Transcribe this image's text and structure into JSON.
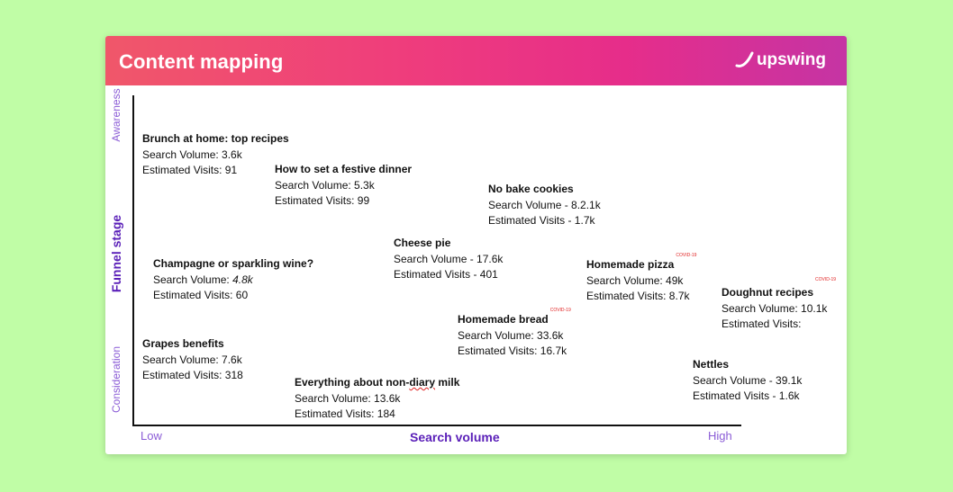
{
  "header": {
    "title": "Content mapping",
    "logo_text": "upswing"
  },
  "axes": {
    "y_title": "Funnel stage",
    "y_top": "Awareness",
    "y_bottom": "Consideration",
    "x_title": "Search volume",
    "x_low": "Low",
    "x_high": "High"
  },
  "items": {
    "brunch": {
      "title": "Brunch at home: top recipes",
      "volume": "Search Volume: 3.6k",
      "visits": "Estimated Visits: 91"
    },
    "festive": {
      "title": "How to set a festive dinner",
      "volume": "Search Volume: 5.3k",
      "visits": "Estimated Visits: 99"
    },
    "cookies": {
      "title": "No bake cookies",
      "volume": "Search Volume - 8.2.1k",
      "visits": "Estimated Visits - 1.7k"
    },
    "cheese": {
      "title": "Cheese pie",
      "volume": "Search Volume - 17.6k",
      "visits": "Estimated Visits - 401"
    },
    "champagne": {
      "title": "Champagne or sparkling wine?",
      "volume_label": "Search Volume: ",
      "volume_value": "4.8k",
      "visits": "Estimated Visits: 60"
    },
    "pizza": {
      "title": "Homemade pizza",
      "badge": "COVID-19",
      "volume": "Search Volume: 49k",
      "visits": "Estimated Visits: 8.7k"
    },
    "doughnut": {
      "title": "Doughnut recipes",
      "badge": "COVID-19",
      "volume": "Search Volume: 10.1k",
      "visits": "Estimated Visits:"
    },
    "bread": {
      "title": "Homemade bread",
      "badge": "COVID-19",
      "volume": "Search Volume: 33.6k",
      "visits": "Estimated Visits: 16.7k"
    },
    "grapes": {
      "title": "Grapes benefits",
      "volume": "Search Volume: 7.6k",
      "visits": "Estimated Visits: 318"
    },
    "milk": {
      "title_before": "Everything about non-",
      "title_squiggle": "diary",
      "title_after": " milk",
      "volume": "Search Volume: 13.6k",
      "visits": "Estimated Visits: 184"
    },
    "nettles": {
      "title": "Nettles",
      "volume": "Search Volume - 39.1k",
      "visits": "Estimated Visits - 1.6k"
    }
  }
}
